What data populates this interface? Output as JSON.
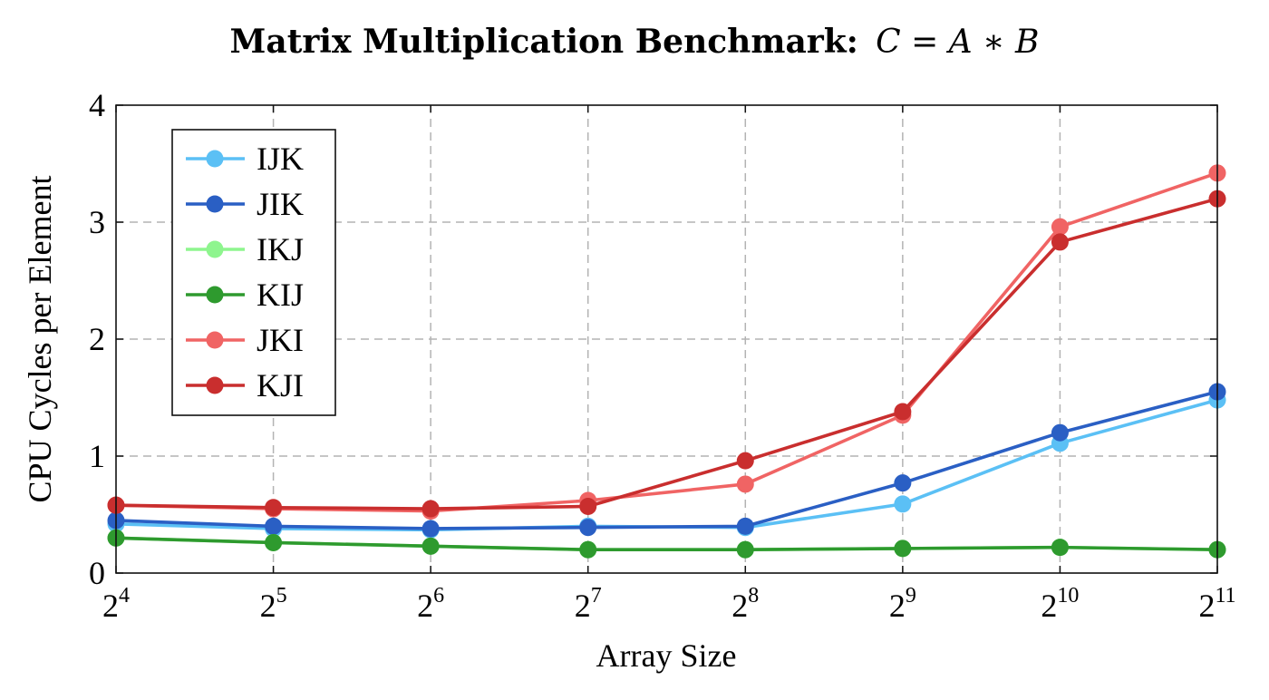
{
  "chart_data": {
    "type": "line",
    "title": "Matrix Multiplication Benchmark:",
    "title_formula": "C = A ∗ B",
    "xlabel": "Array Size",
    "ylabel": "CPU Cycles per Element",
    "x_base": "2",
    "x_exponents": [
      "4",
      "5",
      "6",
      "7",
      "8",
      "9",
      "10",
      "11"
    ],
    "y_ticks": [
      "0",
      "1",
      "2",
      "3",
      "4"
    ],
    "ylim": [
      0,
      4
    ],
    "grid": true,
    "legend_position": "top-left",
    "series": [
      {
        "name": "IJK",
        "color": "#5bc0f5",
        "values": [
          0.42,
          0.38,
          0.37,
          0.4,
          0.39,
          0.59,
          1.11,
          1.48
        ]
      },
      {
        "name": "JIK",
        "color": "#2a5fc4",
        "values": [
          0.45,
          0.4,
          0.38,
          0.39,
          0.4,
          0.77,
          1.2,
          1.55
        ]
      },
      {
        "name": "IKJ",
        "color": "#8ef58e",
        "values": [
          0.3,
          0.26,
          0.23,
          0.2,
          0.2,
          0.21,
          0.22,
          0.2
        ]
      },
      {
        "name": "KIJ",
        "color": "#2e9a2e",
        "values": [
          0.3,
          0.26,
          0.23,
          0.2,
          0.2,
          0.21,
          0.22,
          0.2
        ]
      },
      {
        "name": "JKI",
        "color": "#f06464",
        "values": [
          0.58,
          0.55,
          0.53,
          0.62,
          0.76,
          1.35,
          2.96,
          3.42
        ]
      },
      {
        "name": "KJI",
        "color": "#c92e2e",
        "values": [
          0.58,
          0.56,
          0.55,
          0.57,
          0.96,
          1.38,
          2.83,
          3.2
        ]
      }
    ]
  }
}
